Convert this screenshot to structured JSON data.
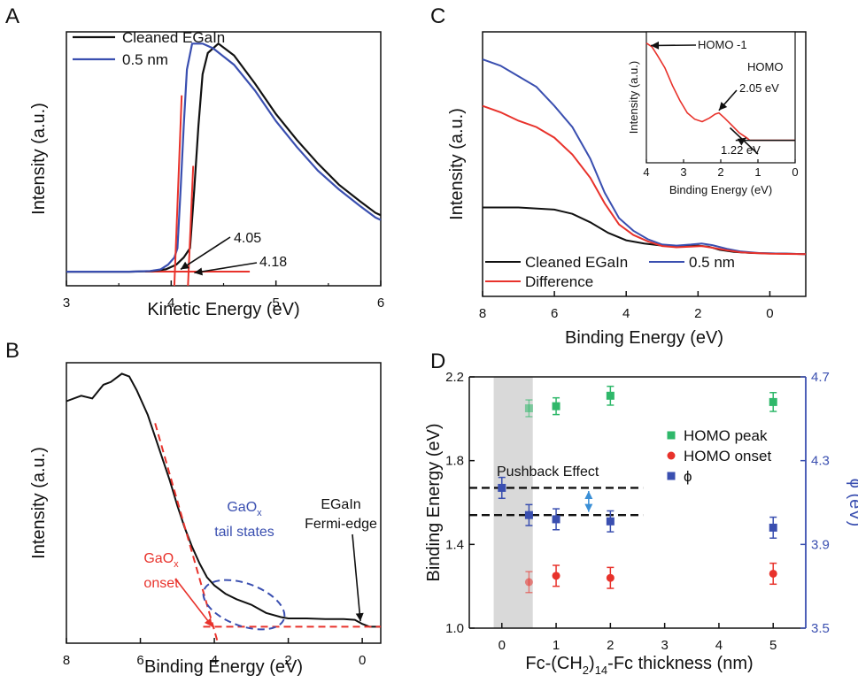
{
  "figure": {
    "colors": {
      "black": "#111111",
      "blue": "#3a4fb0",
      "red": "#e8322b",
      "green": "#2fb86a",
      "shade": "#d9d9d9",
      "arrow_blue": "#3a8fd6"
    }
  },
  "chart_data": [
    {
      "panel": "A",
      "type": "line",
      "xlabel": "Kinetic Energy (eV)",
      "ylabel": "Intensity (a.u.)",
      "xlim": [
        3,
        6
      ],
      "xticks": [
        "3",
        "4",
        "5",
        "6"
      ],
      "series": [
        {
          "name": "Cleaned EGaIn",
          "color": "#111111",
          "x": [
            3.0,
            3.6,
            3.8,
            3.95,
            4.05,
            4.12,
            4.18,
            4.22,
            4.26,
            4.3,
            4.35,
            4.45,
            4.6,
            4.8,
            5.0,
            5.2,
            5.4,
            5.6,
            5.8,
            5.95,
            6.0
          ],
          "y": [
            0.0,
            0.0,
            0.002,
            0.01,
            0.03,
            0.06,
            0.1,
            0.35,
            0.62,
            0.84,
            0.93,
            0.97,
            0.92,
            0.8,
            0.67,
            0.56,
            0.46,
            0.37,
            0.3,
            0.25,
            0.24
          ]
        },
        {
          "name": "0.5 nm",
          "color": "#3a4fb0",
          "x": [
            3.0,
            3.6,
            3.8,
            3.9,
            3.97,
            4.03,
            4.06,
            4.09,
            4.12,
            4.15,
            4.2,
            4.3,
            4.4,
            4.6,
            4.8,
            5.0,
            5.2,
            5.4,
            5.6,
            5.8,
            5.95,
            6.0
          ],
          "y": [
            0.0,
            0.0,
            0.003,
            0.01,
            0.03,
            0.06,
            0.1,
            0.35,
            0.62,
            0.86,
            0.97,
            0.97,
            0.95,
            0.88,
            0.77,
            0.64,
            0.53,
            0.43,
            0.35,
            0.28,
            0.23,
            0.22
          ]
        }
      ],
      "annotations": [
        "4.05",
        "4.18"
      ]
    },
    {
      "panel": "B",
      "type": "line",
      "xlabel": "Binding Energy (eV)",
      "ylabel": "Intensity (a.u.)",
      "xlim": [
        8,
        -0.5
      ],
      "xticks": [
        "8",
        "6",
        "4",
        "2",
        "0"
      ],
      "series": [
        {
          "name": "",
          "color": "#111111",
          "x": [
            8.0,
            7.6,
            7.3,
            7.0,
            6.8,
            6.5,
            6.3,
            6.1,
            5.8,
            5.5,
            5.2,
            5.0,
            4.8,
            4.6,
            4.4,
            4.2,
            4.0,
            3.7,
            3.4,
            3.0,
            2.6,
            2.2,
            2.0,
            1.5,
            1.0,
            0.5,
            0.2,
            0.0,
            -0.2,
            -0.5
          ],
          "y": [
            0.86,
            0.88,
            0.87,
            0.92,
            0.93,
            0.96,
            0.95,
            0.9,
            0.81,
            0.69,
            0.57,
            0.48,
            0.4,
            0.33,
            0.27,
            0.22,
            0.19,
            0.16,
            0.14,
            0.12,
            0.09,
            0.075,
            0.07,
            0.07,
            0.068,
            0.068,
            0.065,
            0.05,
            0.04,
            0.04
          ]
        }
      ],
      "annotations": [
        "EGaIn",
        "Fermi-edge",
        "GaOx",
        "tail states",
        "GaOx",
        "onset"
      ]
    },
    {
      "panel": "C",
      "type": "line",
      "xlabel": "Binding Energy (eV)",
      "ylabel": "Intensity (a.u.)",
      "xlim": [
        8,
        -1
      ],
      "xticks": [
        "8",
        "6",
        "4",
        "2",
        "0"
      ],
      "series": [
        {
          "name": "Cleaned EGaIn",
          "color": "#111111",
          "x": [
            8.0,
            7.0,
            6.0,
            5.5,
            5.0,
            4.5,
            4.0,
            3.5,
            3.0,
            2.5,
            2.0,
            1.7,
            1.4,
            1.0,
            0.5,
            0.0,
            -1.0
          ],
          "y": [
            0.22,
            0.22,
            0.21,
            0.19,
            0.15,
            0.1,
            0.065,
            0.05,
            0.04,
            0.035,
            0.04,
            0.035,
            0.02,
            0.01,
            0.005,
            0.003,
            0.0
          ]
        },
        {
          "name": "0.5 nm",
          "color": "#3a4fb0",
          "x": [
            8.0,
            7.5,
            7.0,
            6.5,
            6.0,
            5.5,
            5.0,
            4.6,
            4.2,
            3.8,
            3.4,
            3.0,
            2.6,
            2.2,
            1.9,
            1.6,
            1.2,
            0.8,
            0.3,
            0.0,
            -1.0
          ],
          "y": [
            0.92,
            0.89,
            0.84,
            0.79,
            0.7,
            0.6,
            0.45,
            0.29,
            0.17,
            0.11,
            0.07,
            0.045,
            0.04,
            0.045,
            0.05,
            0.042,
            0.025,
            0.012,
            0.005,
            0.003,
            0.0
          ]
        },
        {
          "name": "Difference",
          "color": "#e8322b",
          "x": [
            8.0,
            7.5,
            7.0,
            6.5,
            6.0,
            5.5,
            5.0,
            4.6,
            4.2,
            3.8,
            3.4,
            3.0,
            2.6,
            2.2,
            1.9,
            1.6,
            1.2,
            0.8,
            0.3,
            0.0,
            -1.0
          ],
          "y": [
            0.7,
            0.67,
            0.63,
            0.6,
            0.55,
            0.47,
            0.36,
            0.24,
            0.14,
            0.09,
            0.06,
            0.038,
            0.032,
            0.035,
            0.038,
            0.03,
            0.018,
            0.008,
            0.004,
            0.002,
            0.0
          ]
        }
      ],
      "inset": {
        "xlabel": "Binding Energy (eV)",
        "ylabel": "Intensity (a.u.)",
        "xlim": [
          4,
          0
        ],
        "xticks": [
          "4",
          "3",
          "2",
          "1",
          "0"
        ],
        "series": [
          {
            "name": "",
            "color": "#e8322b",
            "x": [
              4.0,
              3.85,
              3.7,
              3.5,
              3.3,
              3.1,
              2.9,
              2.7,
              2.5,
              2.3,
              2.15,
              2.05,
              1.9,
              1.7,
              1.5,
              1.3,
              1.22,
              1.0,
              0.5,
              0.0
            ],
            "y": [
              0.96,
              0.93,
              0.86,
              0.76,
              0.62,
              0.5,
              0.4,
              0.35,
              0.33,
              0.36,
              0.39,
              0.4,
              0.36,
              0.3,
              0.24,
              0.2,
              0.18,
              0.18,
              0.18,
              0.18
            ]
          }
        ],
        "annotations": [
          "HOMO -1",
          "HOMO",
          "2.05 eV",
          "1.22 eV"
        ]
      }
    },
    {
      "panel": "D",
      "type": "scatter",
      "xlabel": "Fc-(CH₂)₁₄-Fc thickness (nm)",
      "ylabel": "Binding Energy (eV)",
      "y2label": "ϕ (eV)",
      "xlim": [
        -0.6,
        5.6
      ],
      "ylim": [
        1.0,
        2.2
      ],
      "y2lim": [
        3.5,
        4.7
      ],
      "xticks": [
        "0",
        "1",
        "2",
        "3",
        "4",
        "5"
      ],
      "yticks": [
        "1.0",
        "1.4",
        "1.8",
        "2.2"
      ],
      "y2ticks": [
        "3.5",
        "3.9",
        "4.3",
        "4.7"
      ],
      "series": [
        {
          "name": "HOMO peak",
          "color": "#2fb86a",
          "axis": "left",
          "x": [
            0.5,
            1,
            2,
            5
          ],
          "y": [
            2.05,
            2.06,
            2.11,
            2.08
          ],
          "err": [
            0.04,
            0.04,
            0.045,
            0.045
          ]
        },
        {
          "name": "HOMO onset",
          "color": "#e8322b",
          "axis": "left",
          "x": [
            0.5,
            1,
            2,
            5
          ],
          "y": [
            1.22,
            1.25,
            1.24,
            1.26
          ],
          "err": [
            0.05,
            0.05,
            0.05,
            0.05
          ]
        },
        {
          "name": "ϕ",
          "color": "#3a4fb0",
          "axis": "right",
          "x": [
            0,
            0.5,
            1,
            2,
            5
          ],
          "y": [
            4.17,
            4.04,
            4.02,
            4.01,
            3.98
          ],
          "err": [
            0.05,
            0.05,
            0.05,
            0.05,
            0.05
          ]
        }
      ],
      "annotations": [
        "Pushback Effect"
      ]
    }
  ],
  "labels": {
    "panel_A": "A",
    "panel_B": "B",
    "panel_C": "C",
    "panel_D": "D",
    "a_val1": "4.05",
    "a_val2": "4.18",
    "b_egain": "EGaIn",
    "b_fermi": "Fermi-edge",
    "b_gaox_tail": "GaO",
    "b_gaox_tail_sub": "x",
    "b_tail": "tail states",
    "b_gaox_onset": "GaO",
    "b_gaox_onset_sub": "x",
    "b_onset": "onset",
    "c_homo_m1": "HOMO -1",
    "c_homo": "HOMO",
    "c_homo_val": "2.05 eV",
    "c_onset_val": "1.22 eV",
    "d_pushback": "Pushback Effect",
    "d_xlabel_pre": "Fc-(CH",
    "d_xlabel_sub1": "2",
    "d_xlabel_mid": ")",
    "d_xlabel_sub2": "14",
    "d_xlabel_post": "-Fc thickness (nm)"
  }
}
